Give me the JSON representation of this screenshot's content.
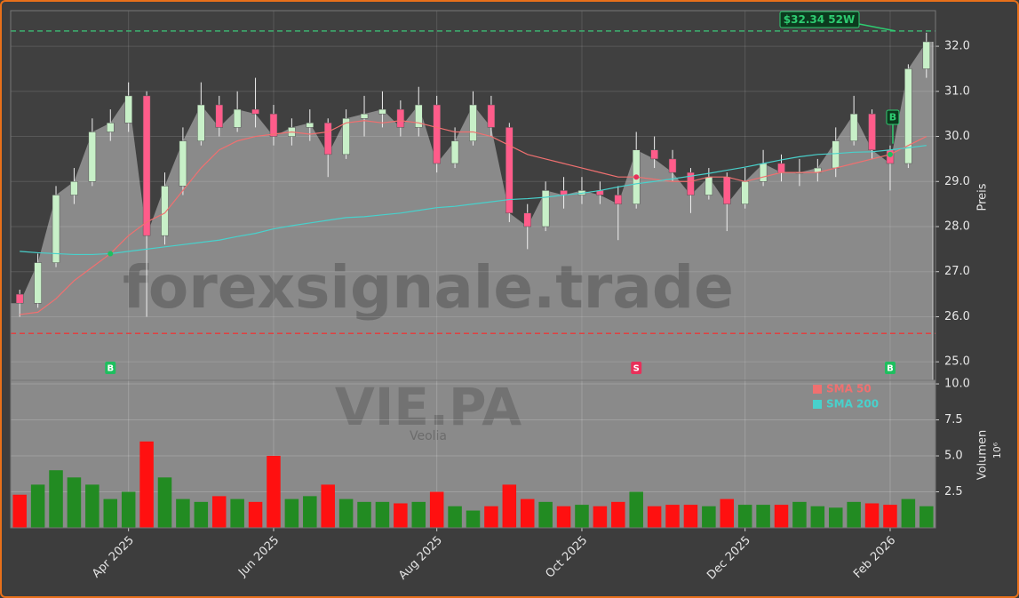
{
  "chart_data": {
    "type": "candlestick",
    "title": "VIE.PA",
    "subtitle": "Veolia",
    "watermark": "forexsignale.trade",
    "categories": [
      null,
      null,
      null,
      null,
      null,
      null,
      "Apr 2025",
      null,
      null,
      null,
      null,
      null,
      null,
      null,
      "Jun 2025",
      null,
      null,
      null,
      null,
      null,
      null,
      null,
      null,
      "Aug 2025",
      null,
      null,
      null,
      null,
      null,
      null,
      null,
      "Oct 2025",
      null,
      null,
      null,
      null,
      null,
      null,
      null,
      null,
      "Dec 2025",
      null,
      null,
      null,
      null,
      null,
      null,
      null,
      "Feb 2026",
      null,
      null
    ],
    "open": [
      26.5,
      26.3,
      27.2,
      28.7,
      29.0,
      30.1,
      30.3,
      30.9,
      27.8,
      28.9,
      29.9,
      30.7,
      30.2,
      30.6,
      30.5,
      30.0,
      30.2,
      30.3,
      29.6,
      30.4,
      30.5,
      30.6,
      30.2,
      30.7,
      29.4,
      29.9,
      30.7,
      30.2,
      28.3,
      28.0,
      28.8,
      28.7,
      28.8,
      28.7,
      28.5,
      29.7,
      29.5,
      29.2,
      28.7,
      29.1,
      28.5,
      29.0,
      29.4,
      29.2,
      29.2,
      29.3,
      29.9,
      30.5,
      29.7,
      29.4,
      31.5
    ],
    "high": [
      26.6,
      27.4,
      28.9,
      29.3,
      30.4,
      30.6,
      31.2,
      31.0,
      29.2,
      30.2,
      31.2,
      30.9,
      31.0,
      31.3,
      30.7,
      30.4,
      30.6,
      30.4,
      30.6,
      30.9,
      31.0,
      30.8,
      31.1,
      30.9,
      30.2,
      31.0,
      30.9,
      30.3,
      28.5,
      29.0,
      29.1,
      29.1,
      29.0,
      28.9,
      30.1,
      30.0,
      29.7,
      29.3,
      29.3,
      29.2,
      29.3,
      29.7,
      29.6,
      29.5,
      29.5,
      30.2,
      30.9,
      30.6,
      29.8,
      31.6,
      32.3
    ],
    "low": [
      26.0,
      26.2,
      27.1,
      28.5,
      28.9,
      29.9,
      30.1,
      26.0,
      27.6,
      28.7,
      29.8,
      30.0,
      30.1,
      30.2,
      29.8,
      29.8,
      29.9,
      29.1,
      29.5,
      30.0,
      30.2,
      30.0,
      30.0,
      29.2,
      29.3,
      29.8,
      30.0,
      28.1,
      27.5,
      27.9,
      28.4,
      28.5,
      28.5,
      27.7,
      28.4,
      29.3,
      29.0,
      28.3,
      28.6,
      27.9,
      28.4,
      28.9,
      29.0,
      28.9,
      29.0,
      29.1,
      29.8,
      29.5,
      28.8,
      29.3,
      31.3
    ],
    "close": [
      26.3,
      27.2,
      28.7,
      29.0,
      30.1,
      30.3,
      30.9,
      27.8,
      28.9,
      29.9,
      30.7,
      30.2,
      30.6,
      30.5,
      30.0,
      30.2,
      30.3,
      29.6,
      30.4,
      30.5,
      30.6,
      30.2,
      30.7,
      29.4,
      29.9,
      30.7,
      30.2,
      28.3,
      28.0,
      28.8,
      28.7,
      28.8,
      28.7,
      28.5,
      29.7,
      29.5,
      29.2,
      28.7,
      29.1,
      28.5,
      29.0,
      29.4,
      29.2,
      29.2,
      29.3,
      29.9,
      30.5,
      29.7,
      29.4,
      31.5,
      32.1
    ],
    "up_color": "#c8f0c8",
    "down_color": "#ff5c8a",
    "area_color": "#8a8a8a",
    "series": [
      {
        "name": "SMA 50",
        "color": "#f07070",
        "values": [
          26.05,
          26.1,
          26.4,
          26.8,
          27.1,
          27.4,
          27.8,
          28.1,
          28.3,
          28.8,
          29.3,
          29.7,
          29.9,
          30.0,
          30.05,
          30.1,
          30.05,
          30.1,
          30.3,
          30.35,
          30.3,
          30.35,
          30.3,
          30.2,
          30.1,
          30.1,
          30.0,
          29.8,
          29.6,
          29.5,
          29.4,
          29.3,
          29.2,
          29.1,
          29.1,
          29.05,
          29.0,
          29.0,
          29.1,
          29.1,
          29.0,
          29.1,
          29.2,
          29.2,
          29.2,
          29.3,
          29.4,
          29.5,
          29.6,
          29.8,
          30.0
        ]
      },
      {
        "name": "SMA 200",
        "color": "#48d1cc",
        "values": [
          27.45,
          27.42,
          27.4,
          27.38,
          27.38,
          27.4,
          27.45,
          27.5,
          27.55,
          27.6,
          27.65,
          27.7,
          27.78,
          27.85,
          27.95,
          28.02,
          28.08,
          28.14,
          28.2,
          28.22,
          28.26,
          28.3,
          28.36,
          28.42,
          28.45,
          28.5,
          28.55,
          28.6,
          28.62,
          28.65,
          28.7,
          28.74,
          28.8,
          28.88,
          28.95,
          29.0,
          29.06,
          29.12,
          29.18,
          29.25,
          29.32,
          29.4,
          29.48,
          29.55,
          29.6,
          29.62,
          29.65,
          29.66,
          29.7,
          29.75,
          29.8
        ]
      }
    ],
    "signals": [
      null,
      null,
      null,
      null,
      null,
      "B",
      null,
      null,
      null,
      null,
      null,
      null,
      null,
      null,
      null,
      null,
      null,
      null,
      null,
      null,
      null,
      null,
      null,
      null,
      null,
      null,
      null,
      null,
      null,
      null,
      null,
      null,
      null,
      null,
      "S",
      null,
      null,
      null,
      null,
      null,
      null,
      null,
      null,
      null,
      null,
      null,
      null,
      null,
      "B",
      null,
      null
    ],
    "signal_colors": {
      "B": "#1fbf5f",
      "S": "#e8305a"
    },
    "high_52w": 32.34,
    "high_52w_label": "$32.34 52W",
    "low_line": 25.63,
    "ylabel": "Preis",
    "ylim": [
      24.59,
      32.79
    ],
    "yticks": [
      {
        "value": 25,
        "label": "25.0"
      },
      {
        "value": 26,
        "label": "26.0"
      },
      {
        "value": 27,
        "label": "27.0"
      },
      {
        "value": 28,
        "label": "28.0"
      },
      {
        "value": 29,
        "label": "29.0"
      },
      {
        "value": 30,
        "label": "30.0"
      },
      {
        "value": 31,
        "label": "31.0"
      },
      {
        "value": 32,
        "label": "32.0"
      }
    ],
    "grid": true,
    "volume": {
      "ylabel": "Volumen",
      "scale_label": "10⁶",
      "values": [
        2.3,
        3.0,
        4.0,
        3.5,
        3.0,
        2.0,
        2.5,
        6.0,
        3.5,
        2.0,
        1.8,
        2.2,
        2.0,
        1.8,
        5.0,
        2.0,
        2.2,
        3.0,
        2.0,
        1.8,
        1.8,
        1.7,
        1.8,
        2.5,
        1.5,
        1.2,
        1.5,
        3.0,
        2.0,
        1.8,
        1.5,
        1.6,
        1.5,
        1.8,
        2.5,
        1.5,
        1.6,
        1.6,
        1.5,
        2.0,
        1.6,
        1.6,
        1.6,
        1.8,
        1.5,
        1.4,
        1.8,
        1.7,
        1.6,
        2.0,
        1.5
      ],
      "up_color": "#228b22",
      "down_color": "#ff1010",
      "ylim": [
        0,
        10.25
      ],
      "yticks": [
        2.5,
        {
          "value": 5,
          "label": "5.0"
        },
        7.5,
        {
          "value": 10,
          "label": "10.0"
        }
      ],
      "legend": "upper right"
    }
  }
}
